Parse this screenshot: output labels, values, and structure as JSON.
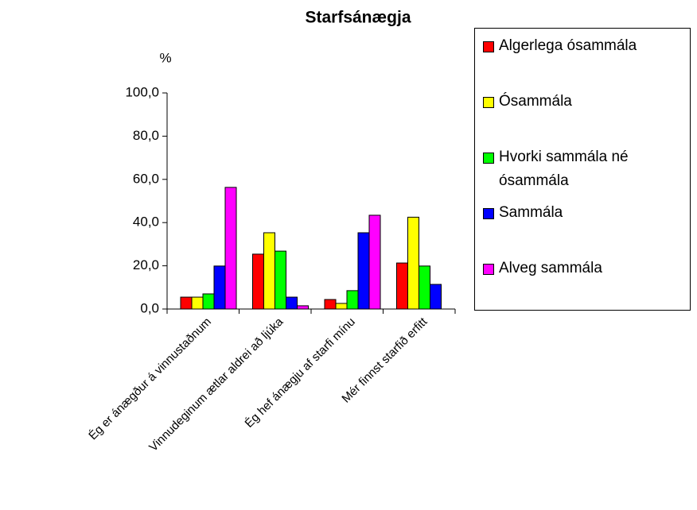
{
  "chart_data": {
    "type": "bar",
    "title": "Starfsánægja",
    "y_label": "%",
    "categories": [
      "Ég er ánægður á vinnustaðnum",
      "Vinnudeginum ætlar aldrei að ljúka",
      "Ég hef ánægju af starfi mínu",
      "Mér finnst starfið erfitt"
    ],
    "series": [
      {
        "name": "Algerlega ósammála",
        "color": "#ff0000",
        "values": [
          5.5,
          25.4,
          4.4,
          21.3
        ]
      },
      {
        "name": "Ósammála",
        "color": "#ffff00",
        "values": [
          5.5,
          35.3,
          2.6,
          42.5
        ]
      },
      {
        "name": "Hvorki sammála né ósammála",
        "color": "#00ff00",
        "values": [
          7.0,
          26.8,
          8.5,
          19.9
        ]
      },
      {
        "name": "Sammála",
        "color": "#0000ff",
        "values": [
          19.9,
          5.5,
          35.3,
          11.4
        ]
      },
      {
        "name": "Alveg sammála",
        "color": "#ff00ff",
        "values": [
          56.3,
          1.5,
          43.4,
          null
        ]
      }
    ],
    "ylim": [
      0,
      100
    ],
    "yticks": [
      {
        "value": 0,
        "label": "0,0"
      },
      {
        "value": 20,
        "label": "20,0"
      },
      {
        "value": 40,
        "label": "40,0"
      },
      {
        "value": 60,
        "label": "60,0"
      },
      {
        "value": 80,
        "label": "80,0"
      },
      {
        "value": 100,
        "label": "100,0"
      }
    ],
    "grid": false,
    "legend": "right"
  }
}
